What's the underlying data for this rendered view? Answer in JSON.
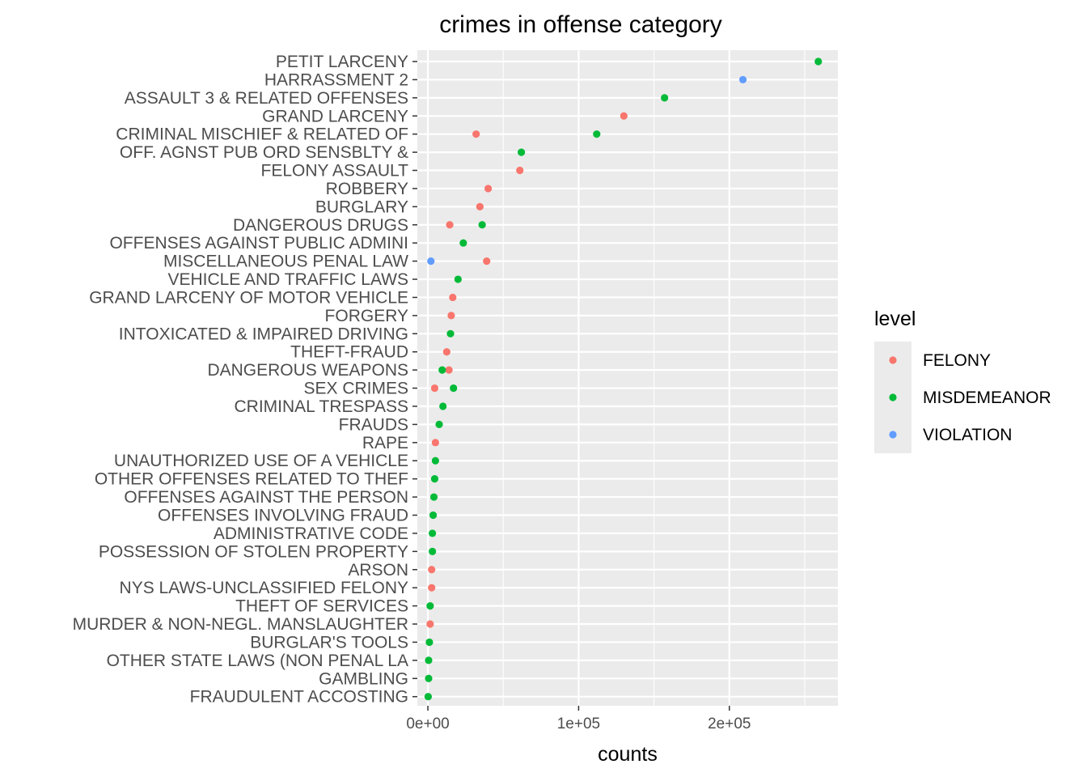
{
  "chart_data": {
    "type": "scatter",
    "title": "crimes in offense category",
    "xlabel": "counts",
    "ylabel": "",
    "xlim": [
      -7000,
      272000
    ],
    "x_ticks": [
      0,
      100000,
      200000
    ],
    "x_tick_labels": [
      "0e+00",
      "1e+05",
      "2e+05"
    ],
    "grid": true,
    "legend": {
      "title": "level",
      "position": "right"
    },
    "categories": [
      "PETIT LARCENY",
      "HARRASSMENT 2",
      "ASSAULT 3 & RELATED OFFENSES",
      "GRAND LARCENY",
      "CRIMINAL MISCHIEF & RELATED OF",
      "OFF. AGNST PUB ORD SENSBLTY &",
      "FELONY ASSAULT",
      "ROBBERY",
      "BURGLARY",
      "DANGEROUS DRUGS",
      "OFFENSES AGAINST PUBLIC ADMINI",
      "MISCELLANEOUS PENAL LAW",
      "VEHICLE AND TRAFFIC LAWS",
      "GRAND LARCENY OF MOTOR VEHICLE",
      "FORGERY",
      "INTOXICATED & IMPAIRED DRIVING",
      "THEFT-FRAUD",
      "DANGEROUS WEAPONS",
      "SEX CRIMES",
      "CRIMINAL TRESPASS",
      "FRAUDS",
      "RAPE",
      "UNAUTHORIZED USE OF A VEHICLE",
      "OTHER OFFENSES RELATED TO THEF",
      "OFFENSES AGAINST THE PERSON",
      "OFFENSES INVOLVING FRAUD",
      "ADMINISTRATIVE CODE",
      "POSSESSION OF STOLEN PROPERTY",
      "ARSON",
      "NYS LAWS-UNCLASSIFIED FELONY",
      "THEFT OF SERVICES",
      "MURDER & NON-NEGL. MANSLAUGHTER",
      "BURGLAR'S TOOLS",
      "OTHER STATE LAWS (NON PENAL LA",
      "GAMBLING",
      "FRAUDULENT ACCOSTING"
    ],
    "series": [
      {
        "name": "FELONY",
        "color": "#f8766d",
        "points": [
          {
            "category": "GRAND LARCENY",
            "x": 130000
          },
          {
            "category": "CRIMINAL MISCHIEF & RELATED OF",
            "x": 32000
          },
          {
            "category": "FELONY ASSAULT",
            "x": 61000
          },
          {
            "category": "ROBBERY",
            "x": 40000
          },
          {
            "category": "BURGLARY",
            "x": 34500
          },
          {
            "category": "DANGEROUS DRUGS",
            "x": 14500
          },
          {
            "category": "MISCELLANEOUS PENAL LAW",
            "x": 39000
          },
          {
            "category": "GRAND LARCENY OF MOTOR VEHICLE",
            "x": 16500
          },
          {
            "category": "FORGERY",
            "x": 15500
          },
          {
            "category": "THEFT-FRAUD",
            "x": 12500
          },
          {
            "category": "DANGEROUS WEAPONS",
            "x": 14000
          },
          {
            "category": "SEX CRIMES",
            "x": 4500
          },
          {
            "category": "RAPE",
            "x": 5000
          },
          {
            "category": "ARSON",
            "x": 2500
          },
          {
            "category": "NYS LAWS-UNCLASSIFIED FELONY",
            "x": 2500
          },
          {
            "category": "MURDER & NON-NEGL. MANSLAUGHTER",
            "x": 1500
          }
        ]
      },
      {
        "name": "MISDEMEANOR",
        "color": "#00ba38",
        "points": [
          {
            "category": "PETIT LARCENY",
            "x": 259000
          },
          {
            "category": "ASSAULT 3 & RELATED OFFENSES",
            "x": 157000
          },
          {
            "category": "CRIMINAL MISCHIEF & RELATED OF",
            "x": 112000
          },
          {
            "category": "OFF. AGNST PUB ORD SENSBLTY &",
            "x": 62000
          },
          {
            "category": "DANGEROUS DRUGS",
            "x": 36000
          },
          {
            "category": "OFFENSES AGAINST PUBLIC ADMINI",
            "x": 23500
          },
          {
            "category": "VEHICLE AND TRAFFIC LAWS",
            "x": 20000
          },
          {
            "category": "INTOXICATED & IMPAIRED DRIVING",
            "x": 15000
          },
          {
            "category": "DANGEROUS WEAPONS",
            "x": 9500
          },
          {
            "category": "SEX CRIMES",
            "x": 17000
          },
          {
            "category": "CRIMINAL TRESPASS",
            "x": 10000
          },
          {
            "category": "FRAUDS",
            "x": 7500
          },
          {
            "category": "UNAUTHORIZED USE OF A VEHICLE",
            "x": 5000
          },
          {
            "category": "OTHER OFFENSES RELATED TO THEF",
            "x": 4500
          },
          {
            "category": "OFFENSES AGAINST THE PERSON",
            "x": 4000
          },
          {
            "category": "OFFENSES INVOLVING FRAUD",
            "x": 3500
          },
          {
            "category": "ADMINISTRATIVE CODE",
            "x": 3000
          },
          {
            "category": "POSSESSION OF STOLEN PROPERTY",
            "x": 3000
          },
          {
            "category": "THEFT OF SERVICES",
            "x": 1500
          },
          {
            "category": "BURGLAR'S TOOLS",
            "x": 1000
          },
          {
            "category": "OTHER STATE LAWS (NON PENAL LA",
            "x": 500
          },
          {
            "category": "GAMBLING",
            "x": 500
          },
          {
            "category": "FRAUDULENT ACCOSTING",
            "x": 200
          }
        ]
      },
      {
        "name": "VIOLATION",
        "color": "#619cff",
        "points": [
          {
            "category": "HARRASSMENT 2",
            "x": 209000
          },
          {
            "category": "MISCELLANEOUS PENAL LAW",
            "x": 2000
          }
        ]
      }
    ]
  }
}
